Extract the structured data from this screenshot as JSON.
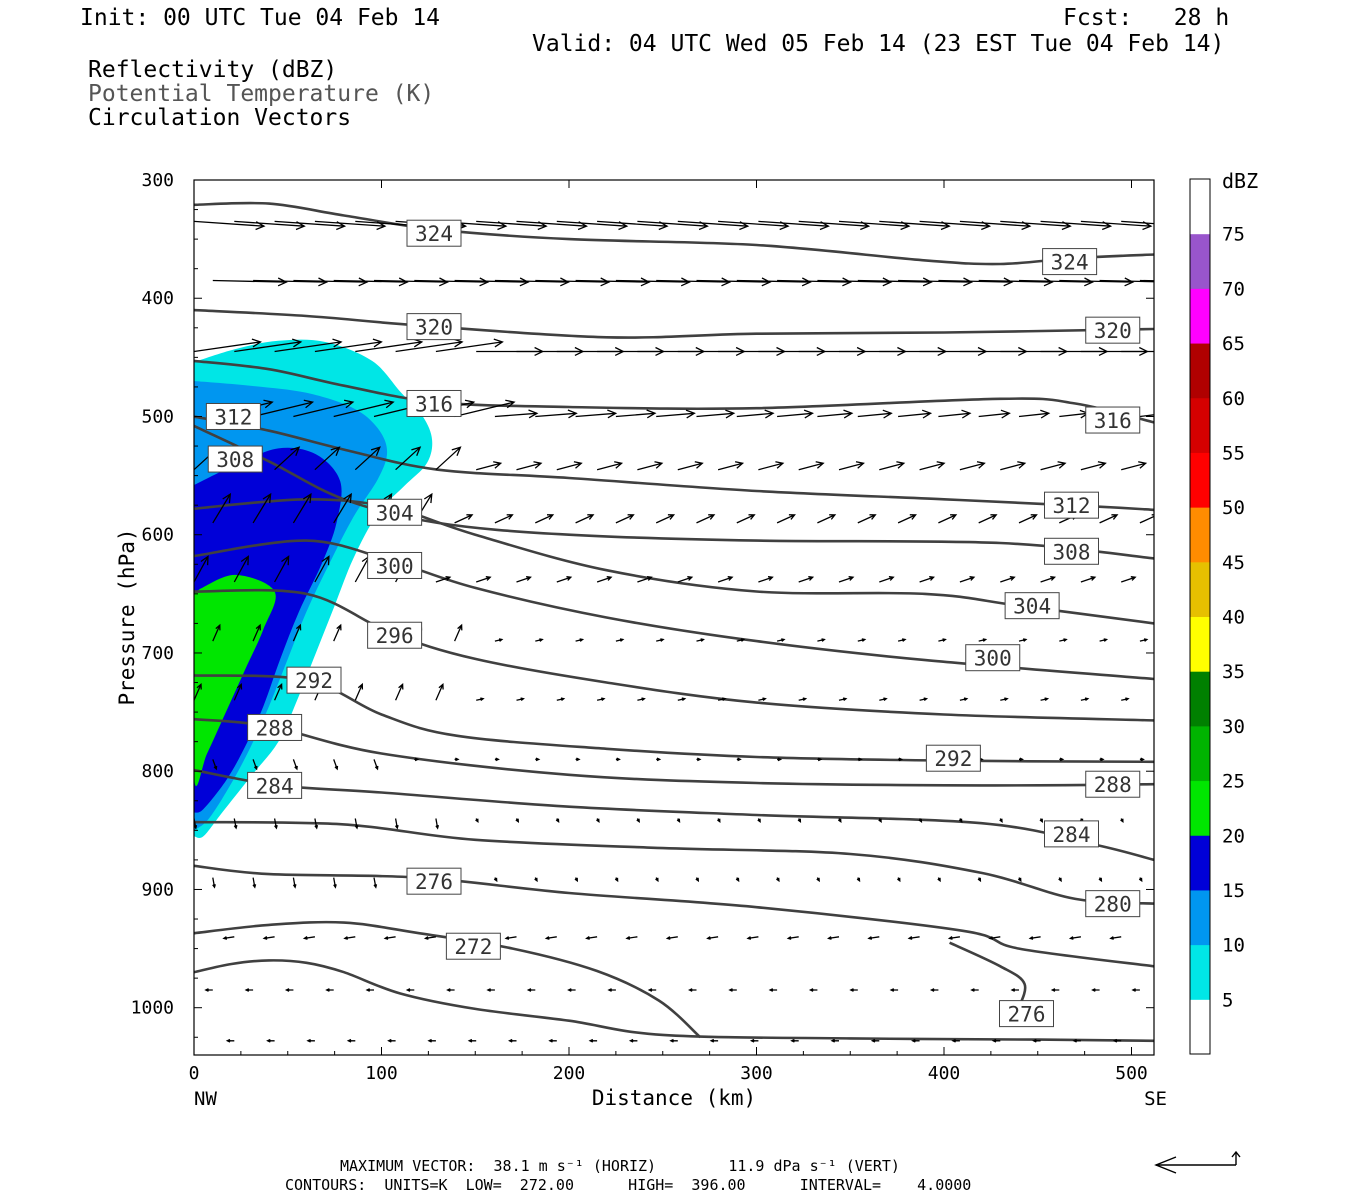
{
  "header": {
    "init": "Init: 00 UTC Tue 04 Feb 14",
    "fcst": "Fcst:   28 h",
    "valid": "Valid: 04 UTC Wed 05 Feb 14 (23 EST Tue 04 Feb 14)",
    "field1": "Reflectivity (dBZ)",
    "field2": "Potential Temperature (K)",
    "field3": "Circulation Vectors"
  },
  "footer": {
    "line1": "MAXIMUM VECTOR:  38.1 m s⁻¹ (HORIZ)        11.9 dPa s⁻¹ (VERT)",
    "line2": "CONTOURS:  UNITS=K  LOW=  272.00      HIGH=  396.00      INTERVAL=    4.0000"
  },
  "colors": {
    "contour": "#404040",
    "bins": [
      "#ffffff",
      "#00e6e6",
      "#0096f0",
      "#0000d8",
      "#00e600",
      "#00b400",
      "#008000",
      "#ffff00",
      "#e6c000",
      "#ff8c00",
      "#ff0000",
      "#d50000",
      "#b00000",
      "#ff00ff",
      "#9955cc",
      "#ffffff"
    ]
  },
  "chart_data": {
    "type": "heatmap",
    "xlabel": "Distance (km)",
    "ylabel": "Pressure (hPa)",
    "x_ends": [
      "NW",
      "SE"
    ],
    "xlim": [
      0,
      512
    ],
    "ylim": [
      300,
      1040
    ],
    "xticks": [
      0,
      100,
      200,
      300,
      400,
      500
    ],
    "yticks": [
      300,
      400,
      500,
      600,
      700,
      800,
      900,
      1000
    ],
    "colorbar": {
      "label": "dBZ",
      "levels": [
        5,
        10,
        15,
        20,
        25,
        30,
        35,
        40,
        45,
        50,
        55,
        60,
        65,
        70,
        75
      ]
    },
    "reflectivity_regions": [
      {
        "dbz": 5,
        "points": [
          [
            0,
            454
          ],
          [
            22,
            443
          ],
          [
            45,
            436
          ],
          [
            70,
            437
          ],
          [
            95,
            453
          ],
          [
            110,
            479
          ],
          [
            122,
            500
          ],
          [
            127,
            520
          ],
          [
            124,
            540
          ],
          [
            112,
            559
          ],
          [
            98,
            582
          ],
          [
            85,
            620
          ],
          [
            75,
            660
          ],
          [
            65,
            700
          ],
          [
            55,
            740
          ],
          [
            45,
            775
          ],
          [
            30,
            805
          ],
          [
            15,
            835
          ],
          [
            5,
            855
          ],
          [
            0,
            855
          ]
        ]
      },
      {
        "dbz": 10,
        "points": [
          [
            0,
            470
          ],
          [
            30,
            474
          ],
          [
            60,
            480
          ],
          [
            85,
            493
          ],
          [
            98,
            510
          ],
          [
            103,
            530
          ],
          [
            98,
            553
          ],
          [
            85,
            585
          ],
          [
            72,
            625
          ],
          [
            60,
            665
          ],
          [
            50,
            705
          ],
          [
            40,
            745
          ],
          [
            30,
            780
          ],
          [
            20,
            810
          ],
          [
            8,
            840
          ],
          [
            0,
            850
          ]
        ]
      },
      {
        "dbz": 15,
        "points": [
          [
            0,
            558
          ],
          [
            22,
            541
          ],
          [
            45,
            527
          ],
          [
            65,
            532
          ],
          [
            78,
            555
          ],
          [
            76,
            590
          ],
          [
            68,
            625
          ],
          [
            56,
            665
          ],
          [
            46,
            705
          ],
          [
            37,
            745
          ],
          [
            27,
            780
          ],
          [
            17,
            808
          ],
          [
            5,
            832
          ],
          [
            0,
            835
          ]
        ]
      },
      {
        "dbz": 20,
        "points": [
          [
            3,
            646
          ],
          [
            22,
            634
          ],
          [
            43,
            648
          ],
          [
            37,
            680
          ],
          [
            27,
            715
          ],
          [
            17,
            750
          ],
          [
            7,
            785
          ],
          [
            0,
            805
          ],
          [
            0,
            650
          ]
        ]
      }
    ],
    "contours": [
      {
        "theta": 324,
        "points": [
          [
            0,
            321
          ],
          [
            40,
            320
          ],
          [
            80,
            330
          ],
          [
            130,
            342
          ],
          [
            200,
            350
          ],
          [
            300,
            355
          ],
          [
            390,
            368
          ],
          [
            430,
            371
          ],
          [
            470,
            366
          ],
          [
            512,
            363
          ]
        ],
        "labels": [
          [
            128,
            345
          ],
          [
            467,
            369
          ]
        ]
      },
      {
        "theta": 320,
        "points": [
          [
            0,
            410
          ],
          [
            60,
            415
          ],
          [
            120,
            423
          ],
          [
            220,
            433
          ],
          [
            300,
            430
          ],
          [
            400,
            429
          ],
          [
            512,
            426
          ]
        ],
        "labels": [
          [
            128,
            424
          ],
          [
            490,
            427
          ]
        ]
      },
      {
        "theta": 316,
        "points": [
          [
            0,
            453
          ],
          [
            40,
            460
          ],
          [
            80,
            474
          ],
          [
            130,
            488
          ],
          [
            200,
            492
          ],
          [
            300,
            493
          ],
          [
            430,
            485
          ],
          [
            470,
            489
          ],
          [
            512,
            505
          ]
        ],
        "labels": [
          [
            128,
            489
          ],
          [
            490,
            503
          ]
        ]
      },
      {
        "theta": 312,
        "points": [
          [
            0,
            500
          ],
          [
            40,
            512
          ],
          [
            80,
            528
          ],
          [
            130,
            545
          ],
          [
            200,
            552
          ],
          [
            300,
            563
          ],
          [
            400,
            570
          ],
          [
            480,
            576
          ],
          [
            512,
            579
          ]
        ],
        "labels": [
          [
            21,
            500
          ],
          [
            468,
            575
          ]
        ]
      },
      {
        "theta": 308,
        "points": [
          [
            0,
            508
          ],
          [
            40,
            538
          ],
          [
            80,
            570
          ],
          [
            130,
            590
          ],
          [
            200,
            600
          ],
          [
            300,
            605
          ],
          [
            430,
            607
          ],
          [
            512,
            620
          ]
        ],
        "labels": [
          [
            22,
            536
          ],
          [
            468,
            614
          ]
        ]
      },
      {
        "theta": 304,
        "points": [
          [
            0,
            578
          ],
          [
            60,
            570
          ],
          [
            105,
            577
          ],
          [
            150,
            600
          ],
          [
            220,
            630
          ],
          [
            300,
            648
          ],
          [
            390,
            650
          ],
          [
            440,
            660
          ],
          [
            512,
            675
          ]
        ],
        "labels": [
          [
            107,
            581
          ],
          [
            447,
            660
          ]
        ]
      },
      {
        "theta": 300,
        "points": [
          [
            0,
            618
          ],
          [
            60,
            605
          ],
          [
            105,
            622
          ],
          [
            150,
            645
          ],
          [
            220,
            670
          ],
          [
            300,
            690
          ],
          [
            390,
            706
          ],
          [
            512,
            722
          ]
        ],
        "labels": [
          [
            107,
            626
          ],
          [
            426,
            704
          ]
        ]
      },
      {
        "theta": 296,
        "points": [
          [
            0,
            648
          ],
          [
            60,
            650
          ],
          [
            105,
            683
          ],
          [
            150,
            705
          ],
          [
            220,
            725
          ],
          [
            300,
            742
          ],
          [
            400,
            752
          ],
          [
            512,
            757
          ]
        ],
        "labels": [
          [
            107,
            685
          ]
        ]
      },
      {
        "theta": 292,
        "points": [
          [
            0,
            719
          ],
          [
            60,
            723
          ],
          [
            100,
            752
          ],
          [
            140,
            770
          ],
          [
            220,
            781
          ],
          [
            300,
            788
          ],
          [
            400,
            791
          ],
          [
            512,
            792
          ]
        ],
        "labels": [
          [
            64,
            723
          ],
          [
            405,
            789
          ]
        ]
      },
      {
        "theta": 288,
        "points": [
          [
            0,
            756
          ],
          [
            40,
            762
          ],
          [
            100,
            785
          ],
          [
            200,
            803
          ],
          [
            300,
            810
          ],
          [
            420,
            812
          ],
          [
            512,
            811
          ]
        ],
        "labels": [
          [
            43,
            763
          ],
          [
            490,
            811
          ]
        ]
      },
      {
        "theta": 284,
        "points": [
          [
            0,
            799
          ],
          [
            45,
            812
          ],
          [
            100,
            818
          ],
          [
            200,
            830
          ],
          [
            300,
            837
          ],
          [
            420,
            844
          ],
          [
            480,
            862
          ],
          [
            512,
            875
          ]
        ],
        "labels": [
          [
            43,
            812
          ],
          [
            468,
            853
          ]
        ]
      },
      {
        "theta": 280,
        "points": [
          [
            0,
            843
          ],
          [
            80,
            845
          ],
          [
            150,
            858
          ],
          [
            250,
            865
          ],
          [
            350,
            870
          ],
          [
            420,
            886
          ],
          [
            470,
            908
          ],
          [
            512,
            912
          ]
        ],
        "labels": [
          [
            490,
            912
          ]
        ]
      },
      {
        "theta": 276,
        "points": [
          [
            0,
            880
          ],
          [
            40,
            887
          ],
          [
            120,
            890
          ],
          [
            200,
            903
          ],
          [
            300,
            915
          ],
          [
            410,
            935
          ],
          [
            440,
            950
          ],
          [
            512,
            965
          ]
        ],
        "labels": [
          [
            128,
            893
          ]
        ]
      },
      {
        "theta": 272,
        "points": [
          [
            0,
            937
          ],
          [
            40,
            930
          ],
          [
            80,
            928
          ],
          [
            120,
            937
          ],
          [
            170,
            950
          ],
          [
            215,
            969
          ],
          [
            248,
            994
          ],
          [
            270,
            1025
          ]
        ],
        "labels": [
          [
            149,
            948
          ]
        ]
      },
      {
        "theta": 276,
        "points": [
          [
            0,
            970
          ],
          [
            20,
            963
          ],
          [
            40,
            960
          ],
          [
            60,
            962
          ],
          [
            80,
            970
          ],
          [
            110,
            988
          ],
          [
            150,
            1001
          ],
          [
            200,
            1011
          ],
          [
            250,
            1023
          ],
          [
            350,
            1026
          ],
          [
            450,
            1027
          ],
          [
            512,
            1028
          ]
        ],
        "labels": []
      },
      {
        "theta": 276,
        "points": [
          [
            403,
            945
          ],
          [
            430,
            965
          ],
          [
            443,
            980
          ],
          [
            439,
            1003
          ],
          [
            435,
            1015
          ]
        ],
        "labels": [
          [
            444,
            1005
          ]
        ]
      }
    ]
  }
}
